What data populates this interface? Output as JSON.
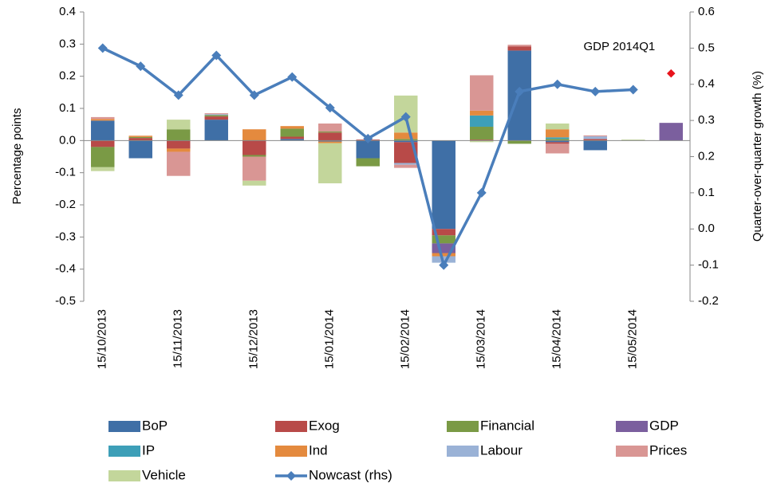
{
  "chart_data": {
    "type": "bar",
    "stacked": true,
    "ylabel": "Percentage points",
    "y2label": "Quarter-over-quarter growth (%)",
    "categories": [
      "15/10/2013",
      null,
      "15/11/2013",
      null,
      "15/12/2013",
      null,
      "15/01/2014",
      null,
      "15/02/2014",
      null,
      "15/03/2014",
      null,
      "15/04/2014",
      null,
      "15/05/2014",
      null
    ],
    "ylim": [
      -0.5,
      0.4
    ],
    "yticks": [
      -0.5,
      -0.4,
      -0.3,
      -0.2,
      -0.1,
      {
        "value": 0,
        "label": "0.0"
      },
      0.1,
      0.2,
      0.3,
      0.4
    ],
    "y2lim": [
      -0.2,
      0.6
    ],
    "y2ticks": [
      -0.2,
      -0.1,
      {
        "value": 0,
        "label": "0.0"
      },
      0.1,
      0.2,
      0.3,
      0.4,
      0.5,
      0.6
    ],
    "series": [
      {
        "name": "BoP",
        "color": "#3f6fa6",
        "values": [
          0.062,
          -0.055,
          0,
          0.065,
          0,
          0.005,
          -0.003,
          -0.055,
          -0.005,
          -0.275,
          0,
          0.28,
          -0.005,
          -0.03,
          0,
          0
        ]
      },
      {
        "name": "Exog",
        "color": "#b84a48",
        "values": [
          -0.02,
          0.008,
          -0.025,
          0.01,
          -0.045,
          0.007,
          0.025,
          0.003,
          -0.065,
          -0.02,
          0.003,
          0.013,
          -0.005,
          0.005,
          0,
          0
        ]
      },
      {
        "name": "Financial",
        "color": "#7a9a45",
        "values": [
          -0.063,
          0.003,
          0.035,
          0.004,
          -0.005,
          0.025,
          0.003,
          -0.025,
          0.005,
          -0.025,
          0.04,
          -0.01,
          0.005,
          0,
          0,
          0
        ]
      },
      {
        "name": "GDP",
        "color": "#7b5f9e",
        "values": [
          0,
          0,
          0,
          0,
          0,
          0,
          0,
          0,
          0,
          -0.03,
          0,
          0,
          0,
          0,
          0,
          0.055
        ]
      },
      {
        "name": "IP",
        "color": "#3d9fb8",
        "values": [
          0,
          0,
          0,
          0,
          0,
          0,
          0,
          0,
          0,
          0,
          0.035,
          0,
          0.005,
          0,
          0,
          0
        ]
      },
      {
        "name": "Ind",
        "color": "#e48a3e",
        "values": [
          0.005,
          0.004,
          -0.01,
          0,
          0.035,
          0.008,
          -0.005,
          0,
          0.02,
          -0.01,
          0.015,
          0,
          0.025,
          0,
          0,
          0
        ]
      },
      {
        "name": "Labour",
        "color": "#9ab2d6",
        "values": [
          0,
          0,
          0,
          0.003,
          0,
          0,
          0,
          0,
          -0.005,
          -0.02,
          0,
          0,
          0,
          0.008,
          0,
          0
        ]
      },
      {
        "name": "Prices",
        "color": "#d99694",
        "values": [
          0.006,
          0,
          -0.075,
          0.003,
          -0.075,
          0,
          0.025,
          0,
          -0.01,
          0,
          0.11,
          0.005,
          -0.03,
          0.003,
          0,
          0
        ]
      },
      {
        "name": "Vehicle",
        "color": "#c3d69b",
        "values": [
          -0.012,
          0,
          0.03,
          0,
          -0.015,
          0,
          -0.125,
          0,
          0.115,
          0,
          -0.005,
          0,
          0.018,
          0,
          0.003,
          0
        ]
      },
      {
        "name": "Nowcast (rhs)",
        "type": "line",
        "axis": "y2",
        "color": "#4a7ebb",
        "values": [
          0.5,
          0.45,
          0.37,
          0.48,
          0.37,
          0.42,
          0.335,
          0.25,
          0.31,
          -0.1,
          0.1,
          0.38,
          0.4,
          0.38,
          0.385,
          null
        ]
      }
    ],
    "annotation": {
      "text": "GDP 2014Q1",
      "value": 0.43,
      "color": "#e8141c"
    }
  }
}
